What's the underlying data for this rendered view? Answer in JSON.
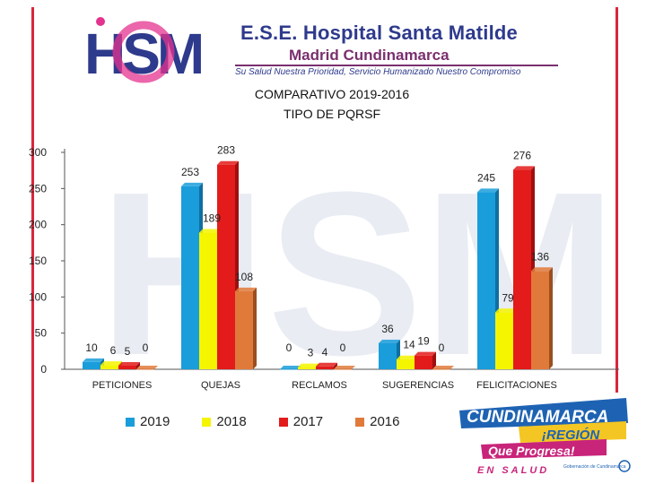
{
  "header": {
    "logo_text": "HSM",
    "hospital_name": "E.S.E. Hospital Santa Matilde",
    "location": "Madrid Cundinamarca",
    "slogan": "Su Salud Nuestra Prioridad, Servicio Humanizado Nuestro Compromiso"
  },
  "colors": {
    "s2019": "#1a9ddb",
    "s2018": "#f5f500",
    "s2017": "#e31b1b",
    "s2016": "#e07a3a",
    "brand_blue": "#2e3a8c",
    "brand_pink": "#e4338f"
  },
  "chart_data": {
    "type": "bar",
    "title": "COMPARATIVO 2019-2016",
    "subtitle": "TIPO DE PQRSF",
    "categories": [
      "PETICIONES",
      "QUEJAS",
      "RECLAMOS",
      "SUGERENCIAS",
      "FELICITACIONES"
    ],
    "series": [
      {
        "name": "2019",
        "values": [
          10,
          253,
          0,
          36,
          245
        ]
      },
      {
        "name": "2018",
        "values": [
          6,
          189,
          3,
          14,
          79
        ]
      },
      {
        "name": "2017",
        "values": [
          5,
          283,
          4,
          19,
          276
        ]
      },
      {
        "name": "2016",
        "values": [
          0,
          108,
          0,
          0,
          136
        ]
      }
    ],
    "data_labels": [
      [
        "10",
        "253",
        "0",
        "36",
        "245"
      ],
      [
        "6",
        "189",
        "3",
        "14",
        "79"
      ],
      [
        "5",
        "283",
        "4",
        "19",
        "276"
      ],
      [
        "0",
        "108",
        "0",
        "0",
        "136"
      ]
    ],
    "y_ticks": [
      "0",
      "50",
      "100",
      "150",
      "200",
      "250",
      "300"
    ],
    "ylim": [
      0,
      300
    ],
    "xlabel": "",
    "ylabel": "",
    "legend_position": "bottom"
  },
  "badge": {
    "line1": "CUNDINAMARCA",
    "line2": "¡REGIÓN",
    "line3": "Que Progresa!",
    "line4": "EN SALUD",
    "small": "Gobernación de Cundinamarca"
  }
}
